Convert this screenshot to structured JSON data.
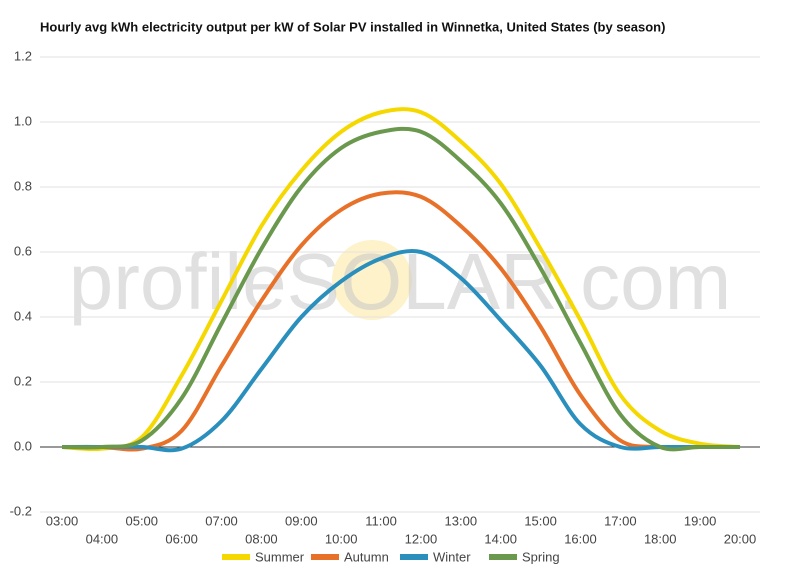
{
  "chart_data": {
    "type": "line",
    "title": "Hourly avg kWh electricity output per kW of Solar PV installed in Winnetka, United States (by season)",
    "watermark": "profileSOLAR.com",
    "categories": [
      "03:00",
      "04:00",
      "05:00",
      "06:00",
      "07:00",
      "08:00",
      "09:00",
      "10:00",
      "11:00",
      "12:00",
      "13:00",
      "14:00",
      "15:00",
      "16:00",
      "17:00",
      "18:00",
      "19:00",
      "20:00"
    ],
    "series": [
      {
        "name": "Summer",
        "color": "#f5d800",
        "values": [
          0,
          -0.005,
          0.03,
          0.22,
          0.45,
          0.68,
          0.85,
          0.97,
          1.03,
          1.03,
          0.94,
          0.81,
          0.61,
          0.39,
          0.16,
          0.05,
          0.01,
          0
        ]
      },
      {
        "name": "Autumn",
        "color": "#e8712a",
        "values": [
          0,
          0,
          -0.005,
          0.05,
          0.25,
          0.45,
          0.62,
          0.73,
          0.78,
          0.77,
          0.68,
          0.55,
          0.37,
          0.16,
          0.02,
          0,
          0,
          0
        ]
      },
      {
        "name": "Winter",
        "color": "#2a8fbd",
        "values": [
          0,
          0,
          0,
          -0.005,
          0.08,
          0.24,
          0.4,
          0.51,
          0.58,
          0.6,
          0.52,
          0.39,
          0.25,
          0.07,
          0,
          0,
          0,
          0
        ]
      },
      {
        "name": "Spring",
        "color": "#6a994e",
        "values": [
          0,
          0,
          0.02,
          0.15,
          0.38,
          0.61,
          0.8,
          0.92,
          0.97,
          0.97,
          0.88,
          0.75,
          0.55,
          0.32,
          0.1,
          0,
          0,
          0
        ]
      }
    ],
    "ylim": [
      -0.2,
      1.2
    ],
    "yticks": [
      -0.2,
      {
        "value": 0,
        "label": "0.0"
      },
      0.2,
      0.4,
      0.6,
      0.8,
      {
        "value": 1,
        "label": "1.0"
      },
      1.2
    ],
    "grid": true,
    "legend": "bottom"
  }
}
